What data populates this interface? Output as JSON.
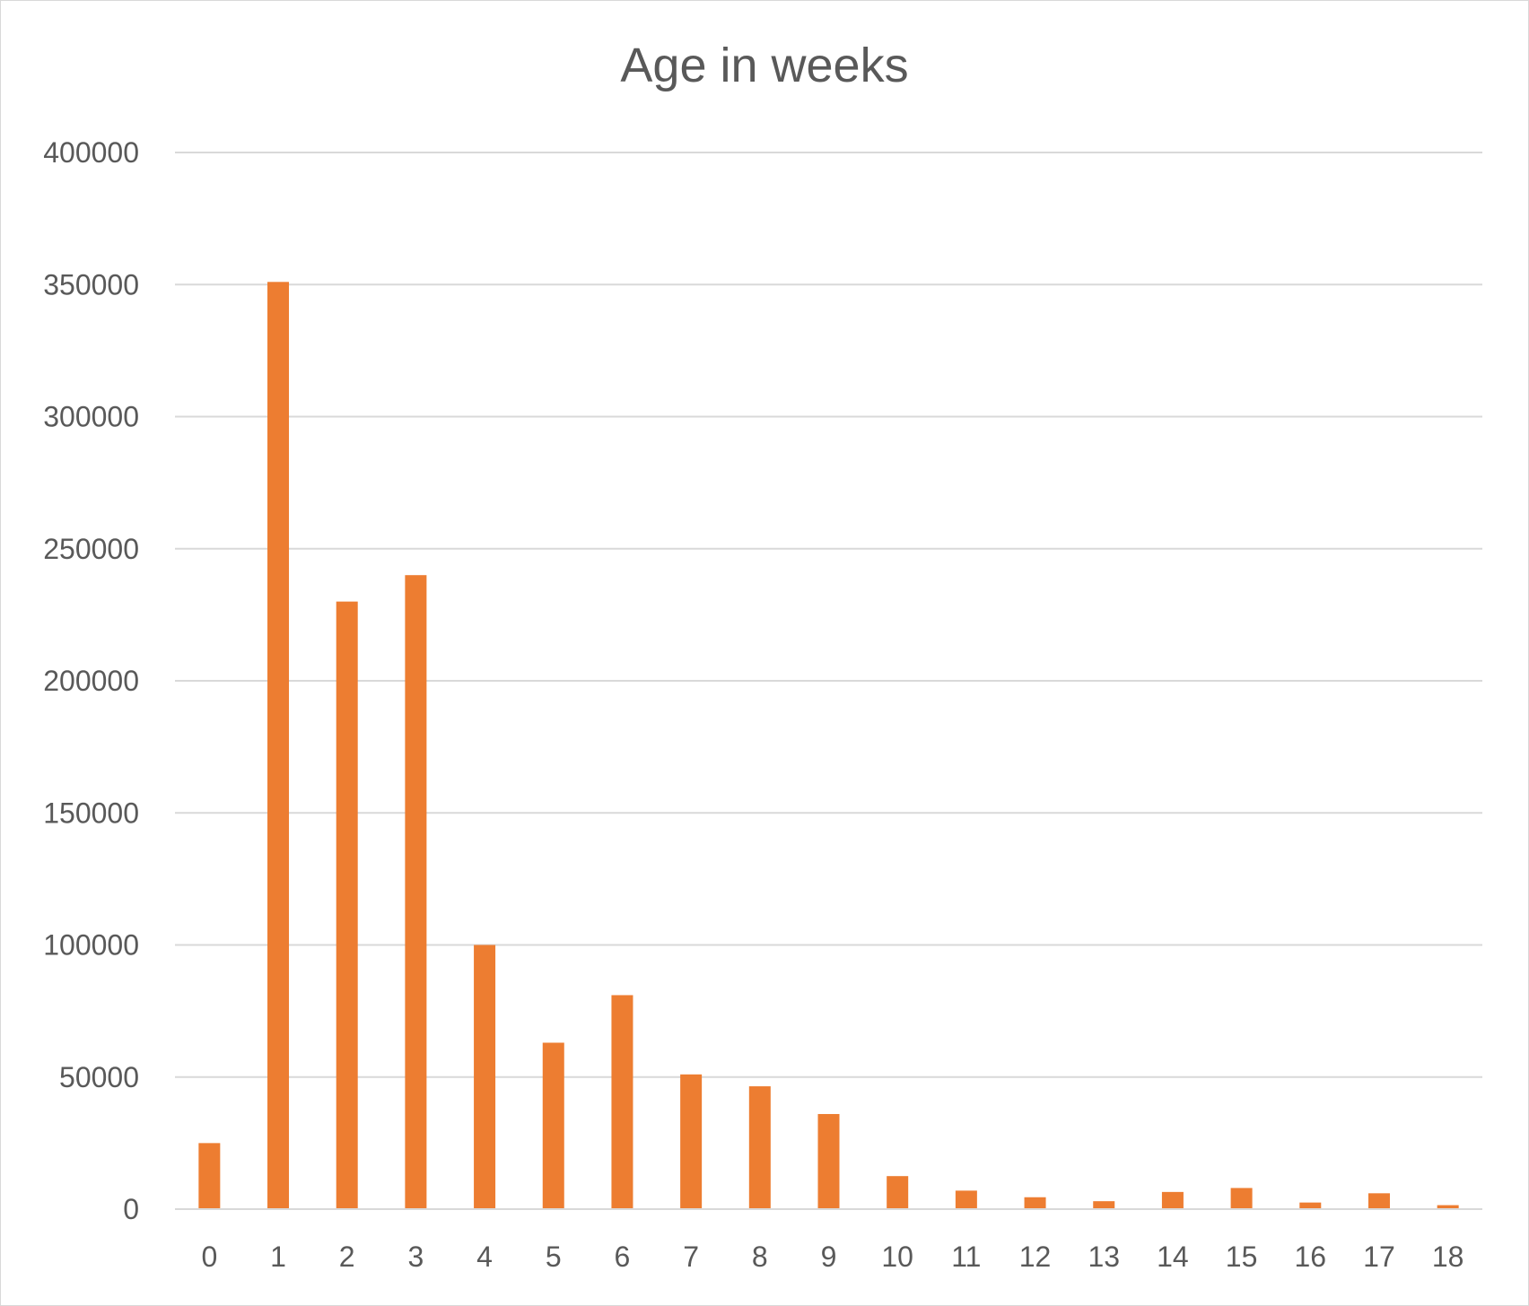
{
  "chart_data": {
    "type": "bar",
    "title": "Age in weeks",
    "xlabel": "",
    "ylabel": "",
    "categories": [
      "0",
      "1",
      "2",
      "3",
      "4",
      "5",
      "6",
      "7",
      "8",
      "9",
      "10",
      "11",
      "12",
      "13",
      "14",
      "15",
      "16",
      "17",
      "18"
    ],
    "values": [
      25000,
      351000,
      230000,
      240000,
      100000,
      63000,
      81000,
      51000,
      46500,
      36000,
      12500,
      7000,
      4500,
      3000,
      6500,
      8000,
      2500,
      6000,
      1500
    ],
    "ylim": [
      0,
      400000
    ],
    "yticks": [
      0,
      50000,
      100000,
      150000,
      200000,
      250000,
      300000,
      350000,
      400000
    ],
    "grid": true,
    "legend": "none",
    "bar_color": "#ed7d31",
    "grid_color": "#d9d9d9",
    "text_color": "#595959"
  }
}
